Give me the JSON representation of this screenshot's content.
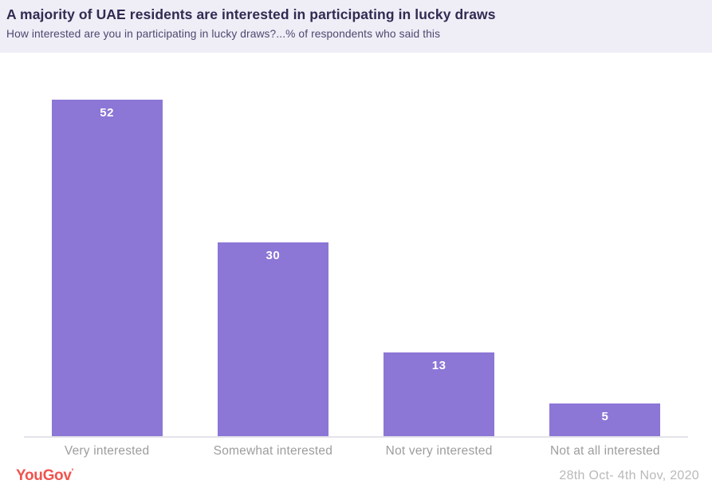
{
  "header": {
    "title": "A majority of UAE residents are interested in participating in lucky draws",
    "subtitle": "How interested are you in participating in lucky draws?...% of respondents who said this"
  },
  "chart_data": {
    "type": "bar",
    "categories": [
      "Very interested",
      "Somewhat interested",
      "Not very interested",
      "Not at all interested"
    ],
    "values": [
      52,
      30,
      13,
      5
    ],
    "title": "A majority of UAE residents are interested in participating in lucky draws",
    "xlabel": "",
    "ylabel": "",
    "ylim": [
      0,
      52
    ],
    "grid": false,
    "legend": false,
    "bar_color": "#8C76D6",
    "value_label_color": "#FFFFFF"
  },
  "footer": {
    "logo_text": "YouGov",
    "logo_tick": "'",
    "date_range": "28th Oct- 4th Nov, 2020"
  },
  "colors": {
    "header_bg": "#EFEDF6",
    "title": "#312A52",
    "subtitle": "#4E4870",
    "bar": "#8C76D6",
    "axis_line": "#E5E4EA",
    "category_label": "#9D9D9D",
    "date": "#B9B9B9",
    "logo": "#F0544C"
  }
}
